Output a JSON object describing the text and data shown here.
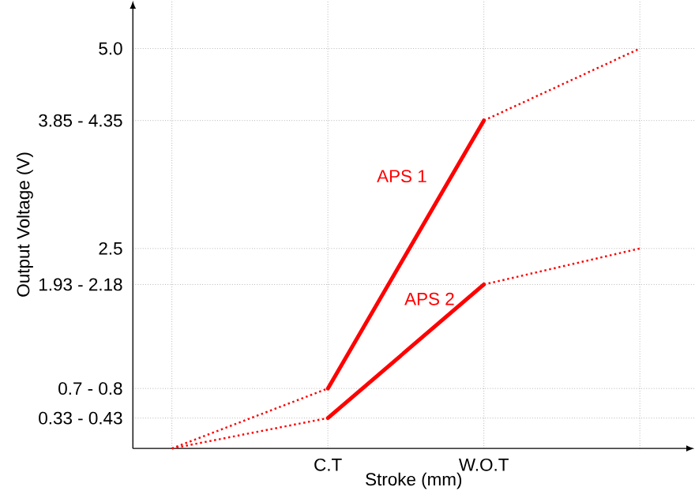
{
  "chart_data": {
    "type": "line",
    "xlabel": "Stroke (mm)",
    "ylabel": "Output Voltage (V)",
    "categories": [
      null,
      "C.T",
      "W.O.T",
      null
    ],
    "ylim": [
      0,
      5.6
    ],
    "yticks": [
      {
        "value": 0.38,
        "label": "0.33 - 0.43"
      },
      {
        "value": 0.75,
        "label": "0.7 - 0.8"
      },
      {
        "value": 2.05,
        "label": "1.93 - 2.18"
      },
      2.5,
      {
        "value": 4.1,
        "label": "3.85 - 4.35"
      },
      {
        "value": 5.0,
        "label": "5.0"
      }
    ],
    "grid": true,
    "legend": false,
    "marker": "none",
    "series": [
      {
        "color": "#ff0000",
        "line_style": "dotted",
        "values": [
          0,
          0.75,
          null,
          null
        ]
      },
      {
        "name": "APS 1",
        "color": "#ff0000",
        "line_style": "solid",
        "values": [
          null,
          0.75,
          4.1,
          null
        ]
      },
      {
        "color": "#ff0000",
        "line_style": "dotted",
        "values": [
          null,
          null,
          4.1,
          5.0
        ]
      },
      {
        "color": "#ff0000",
        "line_style": "dotted",
        "values": [
          0,
          0.38,
          null,
          null
        ]
      },
      {
        "name": "APS 2",
        "color": "#ff0000",
        "line_style": "solid",
        "values": [
          null,
          0.38,
          2.05,
          null
        ]
      },
      {
        "color": "#ff0000",
        "line_style": "dotted",
        "values": [
          null,
          null,
          2.05,
          2.5
        ]
      }
    ]
  }
}
